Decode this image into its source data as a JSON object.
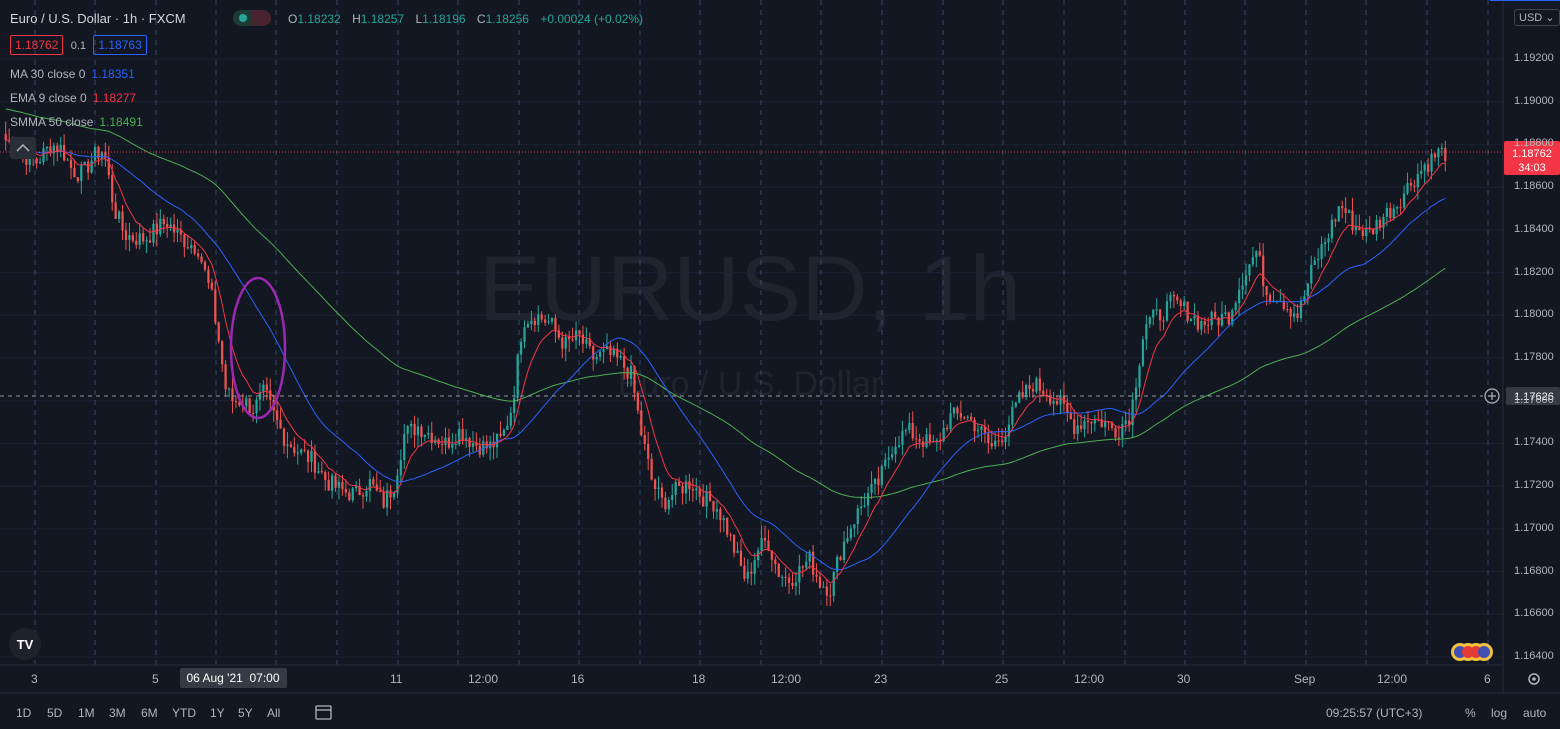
{
  "header": {
    "symbol_desc": "Euro / U.S. Dollar",
    "interval": "1h",
    "exchange": "FXCM",
    "ohlc": {
      "o_label": "O",
      "o": "1.18232",
      "h_label": "H",
      "h": "1.18257",
      "l_label": "L",
      "l": "1.18196",
      "c_label": "C",
      "c": "1.18256",
      "change": "+0.00024 (+0.02%)"
    },
    "bid": "1.18762",
    "spread": "0.1",
    "ask": "1.18763",
    "colors": {
      "up": "#26a69a",
      "down": "#ef5350"
    }
  },
  "indicators": [
    {
      "label": "MA 30 close 0",
      "value": "1.18351",
      "color": "#2962ff"
    },
    {
      "label": "EMA 9 close 0",
      "value": "1.18277",
      "color": "#f23645"
    },
    {
      "label": "SMMA 50 close",
      "value": "1.18491",
      "color": "#4caf50"
    }
  ],
  "watermark": {
    "symbol": "EURUSD, 1h",
    "name": "Euro / U.S. Dollar"
  },
  "price_axis": {
    "currency": "USD",
    "labels": [
      "1.19200",
      "1.19000",
      "1.18800",
      "1.18600",
      "1.18400",
      "1.18200",
      "1.18000",
      "1.17800",
      "1.17600",
      "1.17400",
      "1.17200",
      "1.17000",
      "1.16800",
      "1.16600",
      "1.16400"
    ],
    "last_price": "1.18762",
    "countdown": "34:03",
    "crosshair_price": "1.17626"
  },
  "time_axis": {
    "labels": [
      "3",
      "5",
      "11",
      "12:00",
      "16",
      "18",
      "12:00",
      "23",
      "25",
      "12:00",
      "30",
      "Sep",
      "12:00",
      "6"
    ],
    "crosshair_time": "06 Aug '21  07:00"
  },
  "bottom_bar": {
    "ranges": [
      "1D",
      "5D",
      "1M",
      "3M",
      "6M",
      "YTD",
      "1Y",
      "5Y",
      "All"
    ],
    "clock": "09:25:57 (UTC+3)",
    "percent": "%",
    "log": "log",
    "auto": "auto"
  },
  "logo": "TV",
  "chart_data": {
    "type": "candlestick",
    "symbol": "EURUSD",
    "interval": "1h",
    "ylim": [
      1.1635,
      1.1935
    ],
    "series": [
      {
        "name": "EURUSD",
        "type": "candlestick",
        "close_path": [
          [
            0,
            1.1882
          ],
          [
            3,
            1.188
          ],
          [
            6,
            1.1874
          ],
          [
            9,
            1.1872
          ],
          [
            13,
            1.188
          ],
          [
            16,
            1.1878
          ],
          [
            19,
            1.1868
          ],
          [
            22,
            1.1866
          ],
          [
            25,
            1.1874
          ],
          [
            28,
            1.1878
          ],
          [
            31,
            1.185
          ],
          [
            34,
            1.1838
          ],
          [
            37,
            1.1836
          ],
          [
            40,
            1.1836
          ],
          [
            43,
            1.184
          ],
          [
            46,
            1.1844
          ],
          [
            49,
            1.1838
          ],
          [
            52,
            1.1834
          ],
          [
            55,
            1.1832
          ],
          [
            57,
            1.182
          ],
          [
            59,
            1.1808
          ],
          [
            61,
            1.1788
          ],
          [
            63,
            1.1765
          ],
          [
            65,
            1.176
          ],
          [
            68,
            1.176
          ],
          [
            71,
            1.1756
          ],
          [
            74,
            1.1764
          ],
          [
            77,
            1.1752
          ],
          [
            80,
            1.1742
          ],
          [
            84,
            1.1736
          ],
          [
            88,
            1.1732
          ],
          [
            92,
            1.1722
          ],
          [
            96,
            1.1718
          ],
          [
            100,
            1.1716
          ],
          [
            104,
            1.1722
          ],
          [
            108,
            1.1712
          ],
          [
            111,
            1.172
          ],
          [
            114,
            1.1744
          ],
          [
            118,
            1.1748
          ],
          [
            122,
            1.1744
          ],
          [
            126,
            1.174
          ],
          [
            130,
            1.1746
          ],
          [
            134,
            1.174
          ],
          [
            138,
            1.1738
          ],
          [
            142,
            1.1742
          ],
          [
            145,
            1.1758
          ],
          [
            148,
            1.1798
          ],
          [
            152,
            1.18
          ],
          [
            156,
            1.1796
          ],
          [
            160,
            1.1786
          ],
          [
            164,
            1.179
          ],
          [
            168,
            1.178
          ],
          [
            172,
            1.1782
          ],
          [
            176,
            1.1778
          ],
          [
            179,
            1.1772
          ],
          [
            182,
            1.1744
          ],
          [
            185,
            1.1722
          ],
          [
            188,
            1.1712
          ],
          [
            192,
            1.1718
          ],
          [
            196,
            1.1722
          ],
          [
            200,
            1.1714
          ],
          [
            203,
            1.1712
          ],
          [
            206,
            1.1702
          ],
          [
            209,
            1.1688
          ],
          [
            212,
            1.1675
          ],
          [
            215,
            1.169
          ],
          [
            218,
            1.1695
          ],
          [
            221,
            1.168
          ],
          [
            224,
            1.1676
          ],
          [
            227,
            1.168
          ],
          [
            230,
            1.1686
          ],
          [
            233,
            1.1675
          ],
          [
            236,
            1.1672
          ],
          [
            239,
            1.169
          ],
          [
            242,
            1.1702
          ],
          [
            246,
            1.1714
          ],
          [
            250,
            1.1722
          ],
          [
            254,
            1.174
          ],
          [
            258,
            1.1746
          ],
          [
            262,
            1.1742
          ],
          [
            266,
            1.1738
          ],
          [
            270,
            1.1752
          ],
          [
            274,
            1.1754
          ],
          [
            278,
            1.1748
          ],
          [
            282,
            1.1738
          ],
          [
            286,
            1.1746
          ],
          [
            290,
            1.176
          ],
          [
            294,
            1.1768
          ],
          [
            298,
            1.1764
          ],
          [
            302,
            1.1758
          ],
          [
            306,
            1.1748
          ],
          [
            310,
            1.1752
          ],
          [
            314,
            1.175
          ],
          [
            318,
            1.1746
          ],
          [
            322,
            1.1754
          ],
          [
            326,
            1.1796
          ],
          [
            330,
            1.18
          ],
          [
            334,
            1.1806
          ],
          [
            338,
            1.1802
          ],
          [
            342,
            1.1796
          ],
          [
            346,
            1.1798
          ],
          [
            350,
            1.18
          ],
          [
            354,
            1.1818
          ],
          [
            358,
            1.183
          ],
          [
            361,
            1.181
          ],
          [
            364,
            1.181
          ],
          [
            367,
            1.1804
          ],
          [
            370,
            1.18
          ],
          [
            374,
            1.1822
          ],
          [
            378,
            1.1836
          ],
          [
            382,
            1.1852
          ],
          [
            386,
            1.1842
          ],
          [
            390,
            1.1838
          ],
          [
            394,
            1.1846
          ],
          [
            398,
            1.1852
          ],
          [
            402,
            1.1862
          ],
          [
            406,
            1.187
          ],
          [
            410,
            1.1876
          ],
          [
            412,
            1.1876
          ]
        ]
      },
      {
        "name": "MA 30 close 0",
        "type": "line",
        "color": "#2962ff"
      },
      {
        "name": "EMA 9 close 0",
        "type": "line",
        "color": "#f23645"
      },
      {
        "name": "SMMA 50 close",
        "type": "line",
        "color": "#4caf50"
      }
    ],
    "annotations": [
      {
        "type": "ellipse",
        "color": "#9c27b0"
      }
    ],
    "grid": true
  }
}
